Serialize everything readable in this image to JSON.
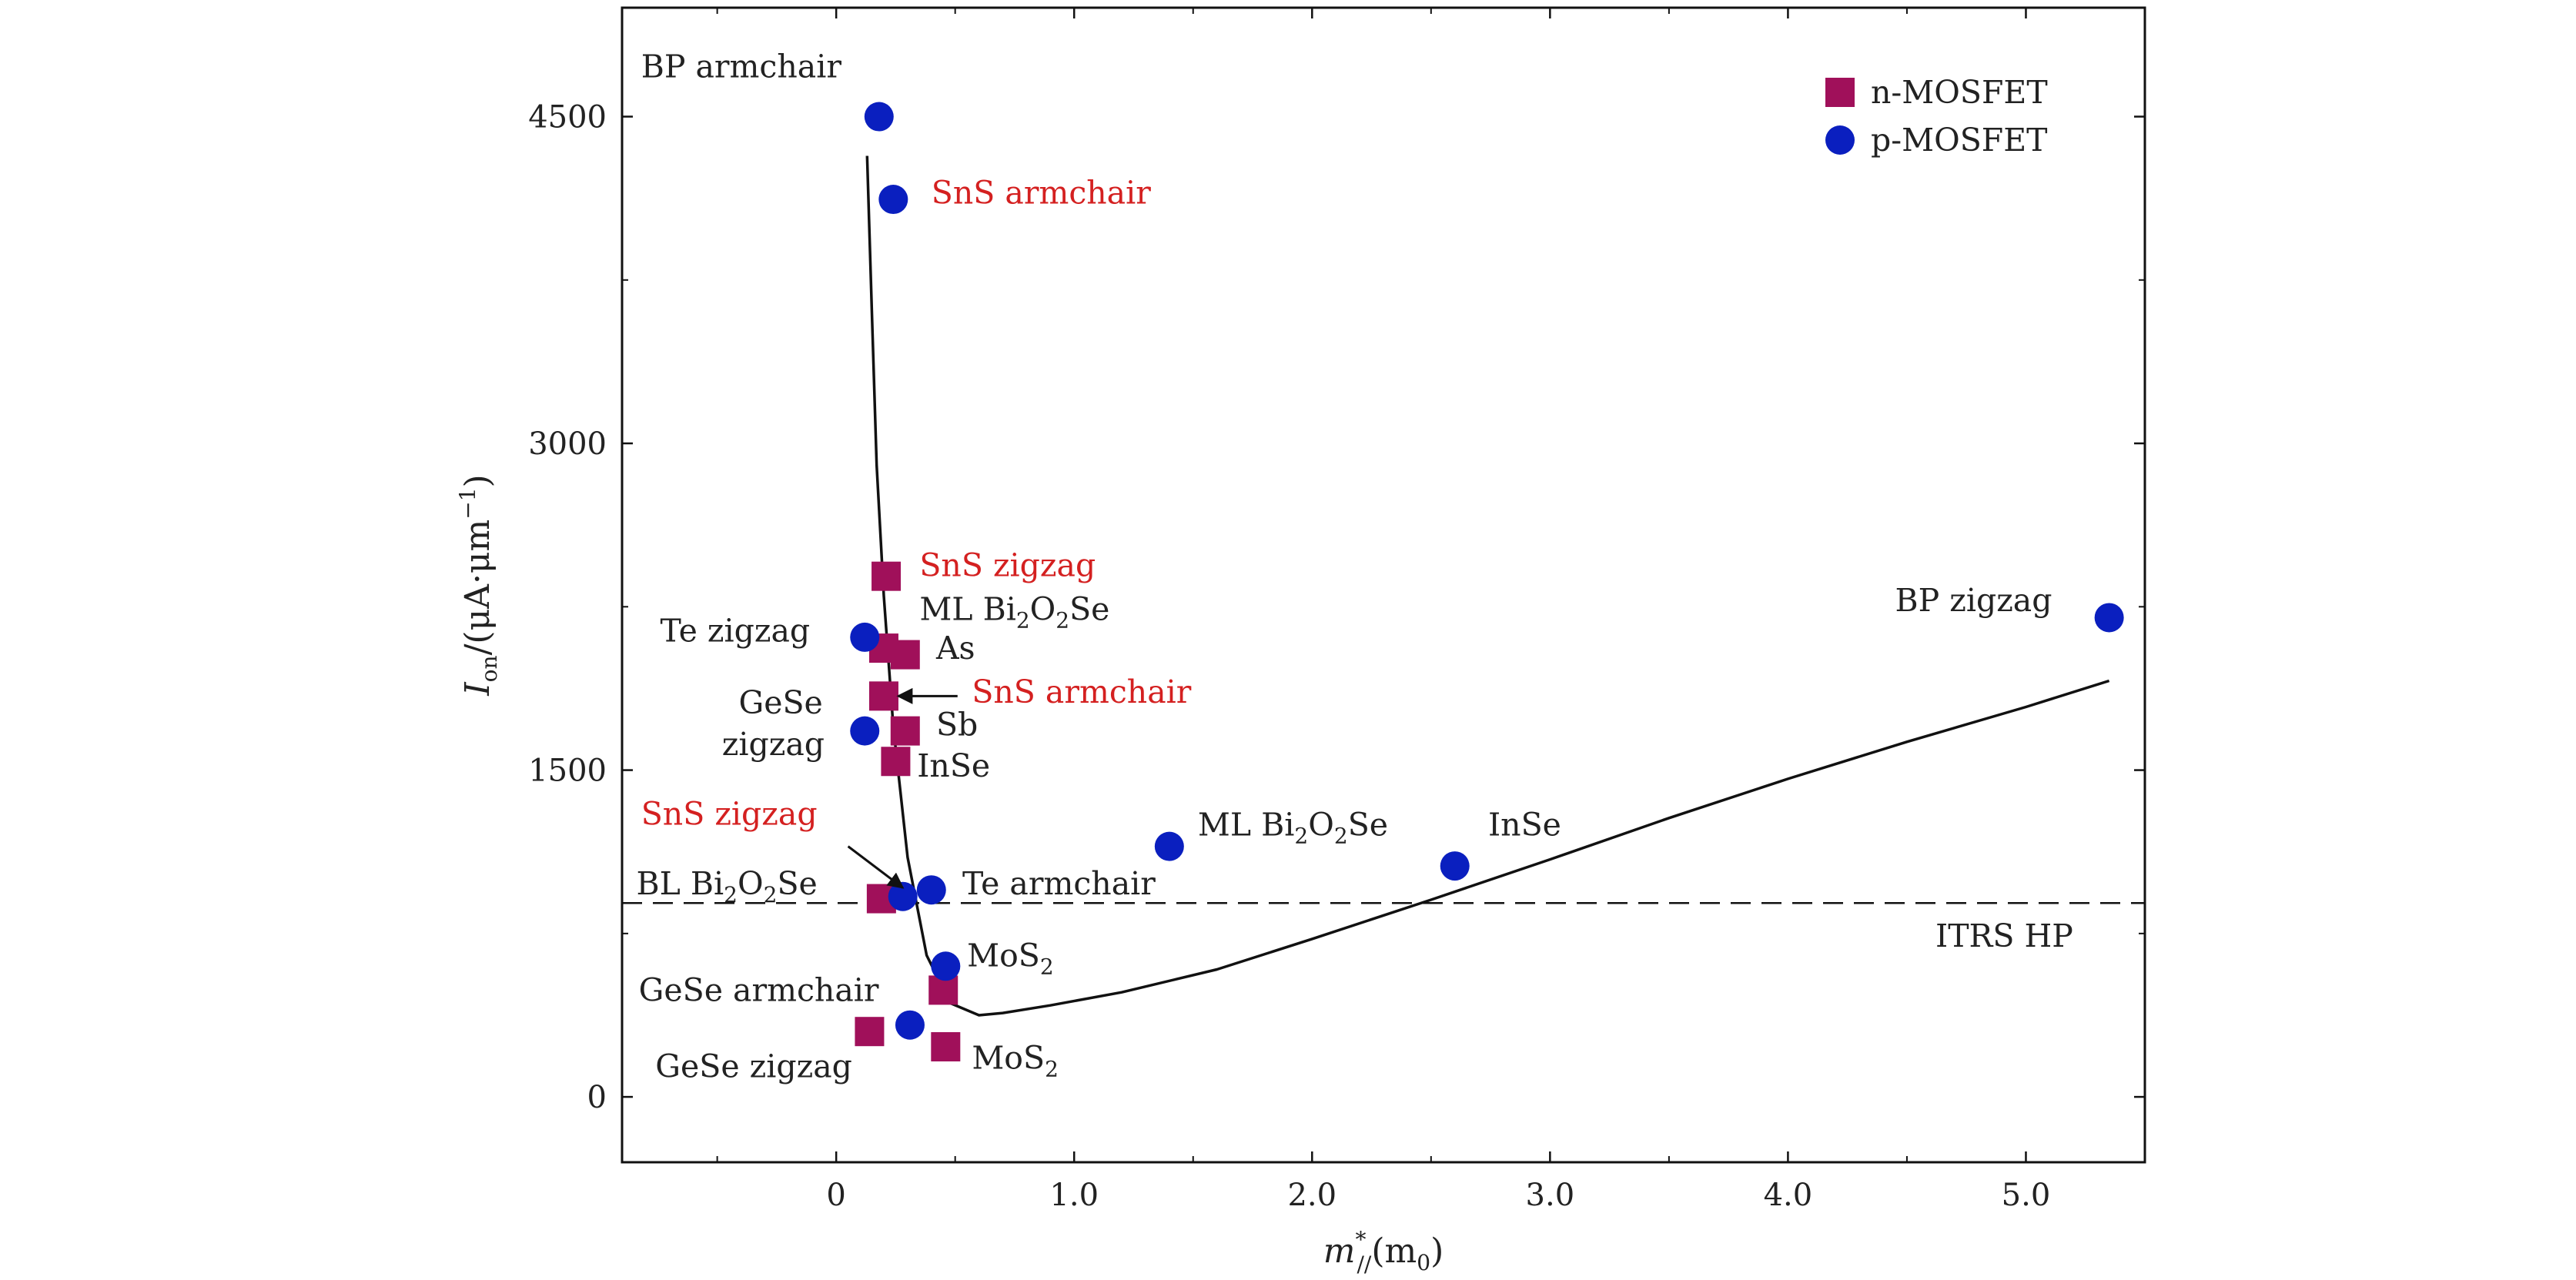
{
  "chart_data": {
    "type": "scatter",
    "xlabel": {
      "main": "m",
      "sup": "*",
      "sub": "//",
      "rest": "(m",
      "rest_sub": "0",
      "close": ")"
    },
    "ylabel": {
      "main": "I",
      "sub": "on",
      "rest": "/(μA·μm",
      "sup": "−1",
      "close": ")"
    },
    "xlim": [
      -0.9,
      5.5
    ],
    "ylim": [
      -300,
      5000
    ],
    "xticks": [
      {
        "value": 0,
        "label": "0"
      },
      {
        "value": 1,
        "label": "1.0"
      },
      {
        "value": 2,
        "label": "2.0"
      },
      {
        "value": 3,
        "label": "3.0"
      },
      {
        "value": 4,
        "label": "4.0"
      },
      {
        "value": 5,
        "label": "5.0"
      }
    ],
    "xminor": [
      -0.5,
      0.5,
      1.5,
      2.5,
      3.5,
      4.5
    ],
    "yticks": [
      {
        "value": 0,
        "label": "0"
      },
      {
        "value": 1500,
        "label": "1500"
      },
      {
        "value": 3000,
        "label": "3000"
      },
      {
        "value": 4500,
        "label": "4500"
      }
    ],
    "yminor": [
      750,
      2250,
      3750
    ],
    "legend": {
      "position": "top-right",
      "entries": [
        {
          "name": "n-MOSFET",
          "marker": "square",
          "color": "#a0105a"
        },
        {
          "name": "p-MOSFET",
          "marker": "circle",
          "color": "#0a1fbf"
        }
      ]
    },
    "series": [
      {
        "name": "n-MOSFET",
        "marker": "square",
        "color": "#a0105a",
        "points": [
          {
            "x": 0.21,
            "y": 2390
          },
          {
            "x": 0.2,
            "y": 2060
          },
          {
            "x": 0.29,
            "y": 2030
          },
          {
            "x": 0.2,
            "y": 1840
          },
          {
            "x": 0.29,
            "y": 1680
          },
          {
            "x": 0.25,
            "y": 1540
          },
          {
            "x": 0.19,
            "y": 910
          },
          {
            "x": 0.45,
            "y": 490
          },
          {
            "x": 0.14,
            "y": 300
          },
          {
            "x": 0.46,
            "y": 230
          }
        ]
      },
      {
        "name": "p-MOSFET",
        "marker": "circle",
        "color": "#0a1fbf",
        "points": [
          {
            "x": 0.18,
            "y": 4500
          },
          {
            "x": 0.24,
            "y": 4120
          },
          {
            "x": 0.12,
            "y": 2110
          },
          {
            "x": 0.12,
            "y": 1680
          },
          {
            "x": 0.28,
            "y": 920
          },
          {
            "x": 0.4,
            "y": 950
          },
          {
            "x": 0.46,
            "y": 600
          },
          {
            "x": 0.31,
            "y": 330
          },
          {
            "x": 1.4,
            "y": 1150
          },
          {
            "x": 2.6,
            "y": 1060
          },
          {
            "x": 5.35,
            "y": 2200
          }
        ]
      }
    ],
    "fit_curve": [
      [
        0.13,
        4320
      ],
      [
        0.15,
        3600
      ],
      [
        0.17,
        2900
      ],
      [
        0.2,
        2300
      ],
      [
        0.24,
        1700
      ],
      [
        0.3,
        1100
      ],
      [
        0.38,
        650
      ],
      [
        0.48,
        430
      ],
      [
        0.6,
        375
      ],
      [
        0.7,
        385
      ],
      [
        0.9,
        420
      ],
      [
        1.2,
        480
      ],
      [
        1.6,
        585
      ],
      [
        2.0,
        725
      ],
      [
        2.5,
        905
      ],
      [
        3.0,
        1090
      ],
      [
        3.5,
        1280
      ],
      [
        4.0,
        1460
      ],
      [
        4.5,
        1630
      ],
      [
        5.0,
        1790
      ],
      [
        5.35,
        1910
      ]
    ],
    "reference_line": {
      "y": 890,
      "label": "ITRS HP"
    },
    "annotations": [
      {
        "text": "BP armchair",
        "x": -0.82,
        "y": 4680,
        "color": "#222222"
      },
      {
        "text": "SnS armchair",
        "x": 0.4,
        "y": 4100,
        "color": "#d42020"
      },
      {
        "text": "SnS zigzag",
        "x": 0.35,
        "y": 2390,
        "color": "#d42020"
      },
      {
        "text": "Te zigzag",
        "x": -0.74,
        "y": 2090,
        "color": "#222222"
      },
      {
        "text": "ML Bi",
        "x": 0.35,
        "y": 2190,
        "color": "#222222",
        "sub1": "2",
        "mid": "O",
        "sub2": "2",
        "end": "Se"
      },
      {
        "text": "As",
        "x": 0.42,
        "y": 2010,
        "color": "#222222"
      },
      {
        "text": "SnS armchair",
        "x": 0.57,
        "y": 1810,
        "color": "#d42020"
      },
      {
        "text": "GeSe",
        "x": -0.41,
        "y": 1760,
        "color": "#222222"
      },
      {
        "text": "zigzag",
        "x": -0.48,
        "y": 1570,
        "color": "#222222"
      },
      {
        "text": "Sb",
        "x": 0.42,
        "y": 1660,
        "color": "#222222"
      },
      {
        "text": "InSe",
        "x": 0.34,
        "y": 1470,
        "color": "#222222"
      },
      {
        "text": "SnS zigzag",
        "x": -0.82,
        "y": 1250,
        "color": "#d42020"
      },
      {
        "text": "BL Bi",
        "x": -0.84,
        "y": 930,
        "color": "#222222",
        "sub1": "2",
        "mid": "O",
        "sub2": "2",
        "end": "Se"
      },
      {
        "text": "Te armchair",
        "x": 0.53,
        "y": 930,
        "color": "#222222"
      },
      {
        "text": "ML Bi",
        "x": 1.52,
        "y": 1200,
        "color": "#222222",
        "sub1": "2",
        "mid": "O",
        "sub2": "2",
        "end": "Se"
      },
      {
        "text": "InSe",
        "x": 2.74,
        "y": 1200,
        "color": "#222222"
      },
      {
        "text": "MoS",
        "x": 0.55,
        "y": 600,
        "color": "#222222",
        "sub1": "2"
      },
      {
        "text": "GeSe armchair",
        "x": -0.83,
        "y": 440,
        "color": "#222222"
      },
      {
        "text": "GeSe zigzag",
        "x": -0.76,
        "y": 90,
        "color": "#222222"
      },
      {
        "text": "MoS",
        "x": 0.57,
        "y": 130,
        "color": "#222222",
        "sub1": "2"
      },
      {
        "text": "BP zigzag",
        "x": 4.45,
        "y": 2230,
        "color": "#222222"
      },
      {
        "text": "ITRS HP",
        "x": 4.62,
        "y": 690,
        "color": "#222222"
      }
    ],
    "arrows": [
      {
        "from": [
          0.51,
          1840
        ],
        "to": [
          0.26,
          1840
        ]
      },
      {
        "from": [
          0.05,
          1150
        ],
        "to": [
          0.28,
          960
        ]
      }
    ]
  }
}
